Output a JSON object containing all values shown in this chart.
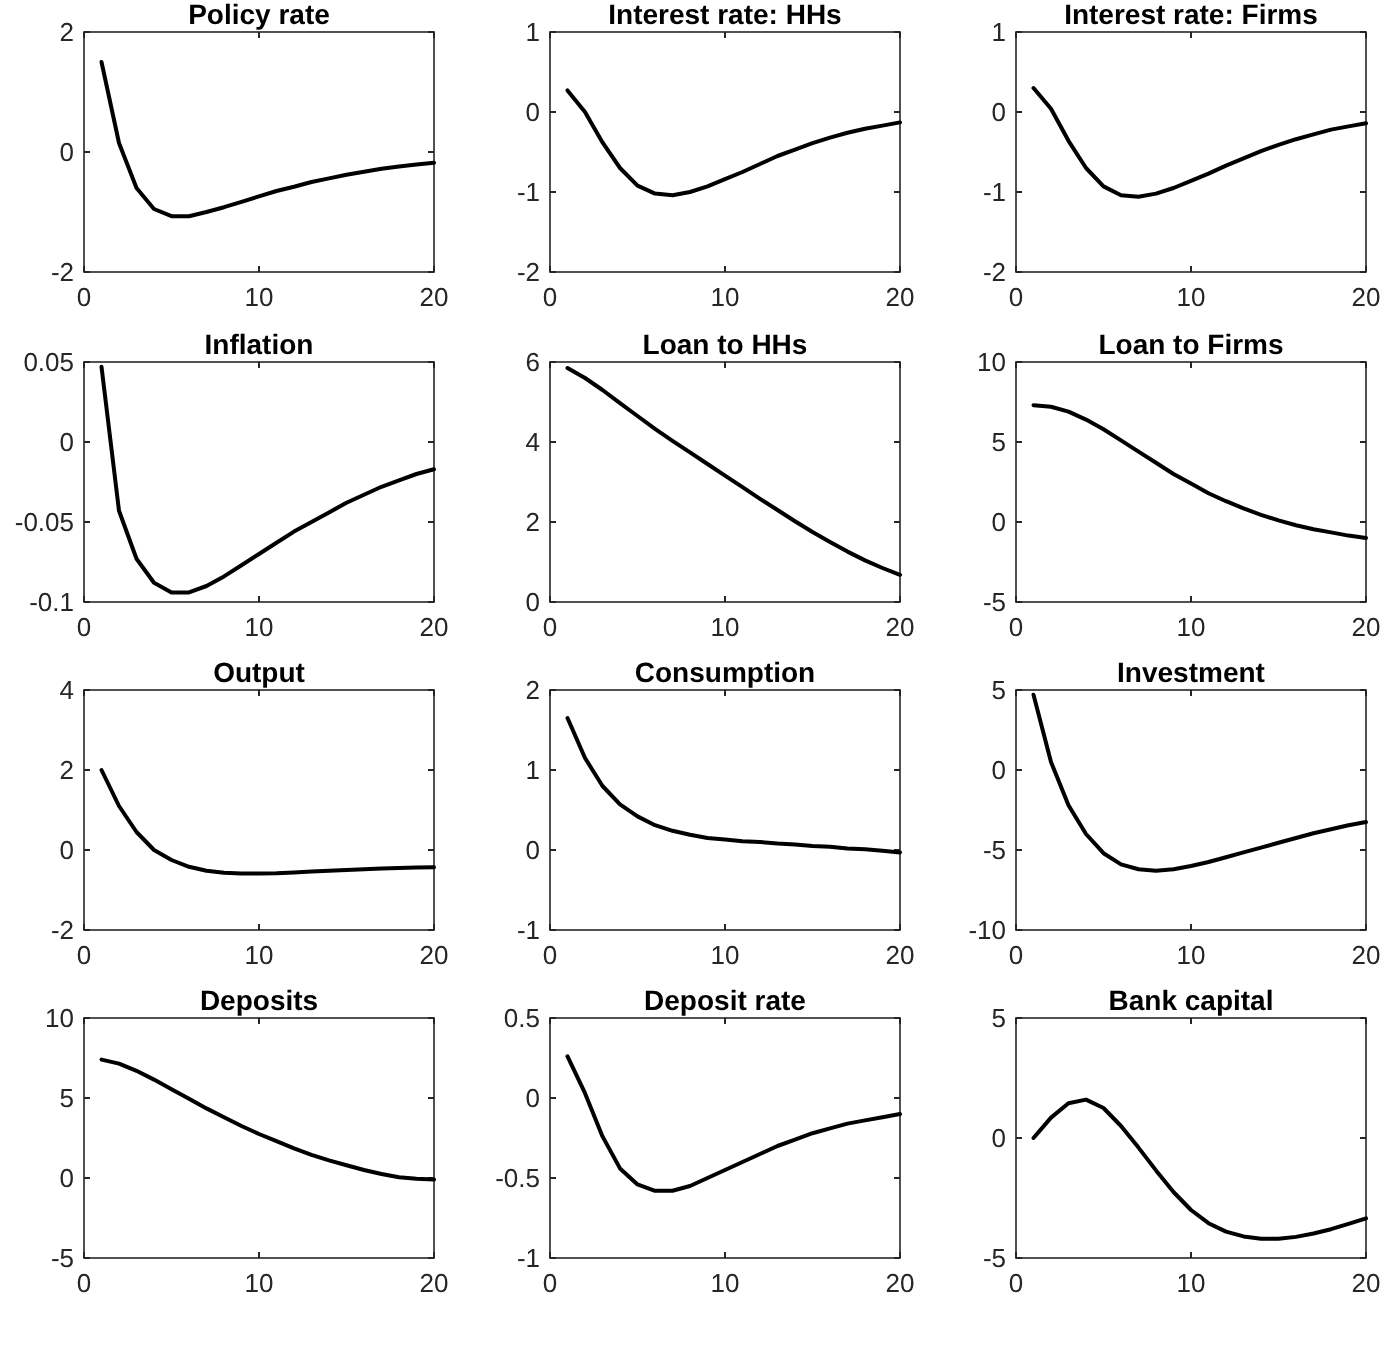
{
  "chart_data": [
    {
      "type": "line",
      "title": "Policy rate",
      "color": "#000000",
      "x": [
        1,
        2,
        3,
        4,
        5,
        6,
        7,
        8,
        9,
        10,
        11,
        12,
        13,
        14,
        15,
        16,
        17,
        18,
        19,
        20
      ],
      "values": [
        1.5,
        0.15,
        -0.6,
        -0.95,
        -1.07,
        -1.07,
        -1.0,
        -0.92,
        -0.83,
        -0.74,
        -0.65,
        -0.58,
        -0.5,
        -0.44,
        -0.38,
        -0.33,
        -0.28,
        -0.24,
        -0.21,
        -0.18
      ],
      "xlim": [
        0,
        20
      ],
      "xticks": [
        0,
        10,
        20
      ],
      "ylim": [
        -2,
        2
      ],
      "yticks": [
        -2,
        0,
        2
      ]
    },
    {
      "type": "line",
      "title": "Interest rate: HHs",
      "color": "#000000",
      "x": [
        1,
        2,
        3,
        4,
        5,
        6,
        7,
        8,
        9,
        10,
        11,
        12,
        13,
        14,
        15,
        16,
        17,
        18,
        19,
        20
      ],
      "values": [
        0.27,
        0.0,
        -0.38,
        -0.7,
        -0.92,
        -1.02,
        -1.04,
        -1.0,
        -0.93,
        -0.84,
        -0.75,
        -0.65,
        -0.55,
        -0.47,
        -0.39,
        -0.32,
        -0.26,
        -0.21,
        -0.17,
        -0.13
      ],
      "xlim": [
        0,
        20
      ],
      "xticks": [
        0,
        10,
        20
      ],
      "ylim": [
        -2,
        1
      ],
      "yticks": [
        -2,
        -1,
        0,
        1
      ]
    },
    {
      "type": "line",
      "title": "Interest rate: Firms",
      "color": "#000000",
      "x": [
        1,
        2,
        3,
        4,
        5,
        6,
        7,
        8,
        9,
        10,
        11,
        12,
        13,
        14,
        15,
        16,
        17,
        18,
        19,
        20
      ],
      "values": [
        0.3,
        0.04,
        -0.36,
        -0.7,
        -0.93,
        -1.04,
        -1.06,
        -1.02,
        -0.95,
        -0.86,
        -0.77,
        -0.67,
        -0.58,
        -0.49,
        -0.41,
        -0.34,
        -0.28,
        -0.22,
        -0.18,
        -0.14
      ],
      "xlim": [
        0,
        20
      ],
      "xticks": [
        0,
        10,
        20
      ],
      "ylim": [
        -2,
        1
      ],
      "yticks": [
        -2,
        -1,
        0,
        1
      ]
    },
    {
      "type": "line",
      "title": "Inflation",
      "color": "#000000",
      "x": [
        1,
        2,
        3,
        4,
        5,
        6,
        7,
        8,
        9,
        10,
        11,
        12,
        13,
        14,
        15,
        16,
        17,
        18,
        19,
        20
      ],
      "values": [
        0.047,
        -0.043,
        -0.073,
        -0.088,
        -0.094,
        -0.094,
        -0.09,
        -0.084,
        -0.077,
        -0.07,
        -0.063,
        -0.056,
        -0.05,
        -0.044,
        -0.038,
        -0.033,
        -0.028,
        -0.024,
        -0.02,
        -0.017
      ],
      "xlim": [
        0,
        20
      ],
      "xticks": [
        0,
        10,
        20
      ],
      "ylim": [
        -0.1,
        0.05
      ],
      "yticks": [
        -0.1,
        -0.05,
        0,
        0.05
      ]
    },
    {
      "type": "line",
      "title": "Loan to HHs",
      "color": "#000000",
      "x": [
        1,
        2,
        3,
        4,
        5,
        6,
        7,
        8,
        9,
        10,
        11,
        12,
        13,
        14,
        15,
        16,
        17,
        18,
        19,
        20
      ],
      "values": [
        5.85,
        5.6,
        5.3,
        4.97,
        4.65,
        4.33,
        4.03,
        3.74,
        3.45,
        3.16,
        2.87,
        2.58,
        2.3,
        2.02,
        1.75,
        1.5,
        1.26,
        1.04,
        0.85,
        0.68
      ],
      "xlim": [
        0,
        20
      ],
      "xticks": [
        0,
        10,
        20
      ],
      "ylim": [
        0,
        6
      ],
      "yticks": [
        0,
        2,
        4,
        6
      ]
    },
    {
      "type": "line",
      "title": "Loan to Firms",
      "color": "#000000",
      "x": [
        1,
        2,
        3,
        4,
        5,
        6,
        7,
        8,
        9,
        10,
        11,
        12,
        13,
        14,
        15,
        16,
        17,
        18,
        19,
        20
      ],
      "values": [
        7.3,
        7.2,
        6.9,
        6.4,
        5.8,
        5.1,
        4.4,
        3.7,
        3.0,
        2.4,
        1.8,
        1.3,
        0.85,
        0.45,
        0.1,
        -0.2,
        -0.45,
        -0.65,
        -0.85,
        -1.0
      ],
      "xlim": [
        0,
        20
      ],
      "xticks": [
        0,
        10,
        20
      ],
      "ylim": [
        -5,
        10
      ],
      "yticks": [
        -5,
        0,
        5,
        10
      ]
    },
    {
      "type": "line",
      "title": "Output",
      "color": "#000000",
      "x": [
        1,
        2,
        3,
        4,
        5,
        6,
        7,
        8,
        9,
        10,
        11,
        12,
        13,
        14,
        15,
        16,
        17,
        18,
        19,
        20
      ],
      "values": [
        2.0,
        1.1,
        0.45,
        0.0,
        -0.25,
        -0.42,
        -0.52,
        -0.57,
        -0.59,
        -0.59,
        -0.58,
        -0.56,
        -0.54,
        -0.52,
        -0.5,
        -0.48,
        -0.46,
        -0.45,
        -0.44,
        -0.43
      ],
      "xlim": [
        0,
        20
      ],
      "xticks": [
        0,
        10,
        20
      ],
      "ylim": [
        -2,
        4
      ],
      "yticks": [
        -2,
        0,
        2,
        4
      ]
    },
    {
      "type": "line",
      "title": "Consumption",
      "color": "#000000",
      "x": [
        1,
        2,
        3,
        4,
        5,
        6,
        7,
        8,
        9,
        10,
        11,
        12,
        13,
        14,
        15,
        16,
        17,
        18,
        19,
        20
      ],
      "values": [
        1.65,
        1.15,
        0.8,
        0.57,
        0.42,
        0.31,
        0.24,
        0.19,
        0.15,
        0.13,
        0.11,
        0.1,
        0.08,
        0.07,
        0.05,
        0.04,
        0.02,
        0.01,
        -0.01,
        -0.03
      ],
      "xlim": [
        0,
        20
      ],
      "xticks": [
        0,
        10,
        20
      ],
      "ylim": [
        -1,
        2
      ],
      "yticks": [
        -1,
        0,
        1,
        2
      ]
    },
    {
      "type": "line",
      "title": "Investment",
      "color": "#000000",
      "x": [
        1,
        2,
        3,
        4,
        5,
        6,
        7,
        8,
        9,
        10,
        11,
        12,
        13,
        14,
        15,
        16,
        17,
        18,
        19,
        20
      ],
      "values": [
        4.7,
        0.5,
        -2.2,
        -4.0,
        -5.2,
        -5.9,
        -6.2,
        -6.3,
        -6.2,
        -6.0,
        -5.75,
        -5.45,
        -5.15,
        -4.85,
        -4.55,
        -4.25,
        -3.95,
        -3.7,
        -3.45,
        -3.25
      ],
      "xlim": [
        0,
        20
      ],
      "xticks": [
        0,
        10,
        20
      ],
      "ylim": [
        -10,
        5
      ],
      "yticks": [
        -10,
        -5,
        0,
        5
      ]
    },
    {
      "type": "line",
      "title": "Deposits",
      "color": "#000000",
      "x": [
        1,
        2,
        3,
        4,
        5,
        6,
        7,
        8,
        9,
        10,
        11,
        12,
        13,
        14,
        15,
        16,
        17,
        18,
        19,
        20
      ],
      "values": [
        7.4,
        7.15,
        6.7,
        6.15,
        5.55,
        4.95,
        4.35,
        3.8,
        3.25,
        2.75,
        2.3,
        1.85,
        1.45,
        1.1,
        0.8,
        0.5,
        0.25,
        0.05,
        -0.05,
        -0.1
      ],
      "xlim": [
        0,
        20
      ],
      "xticks": [
        0,
        10,
        20
      ],
      "ylim": [
        -5,
        10
      ],
      "yticks": [
        -5,
        0,
        5,
        10
      ]
    },
    {
      "type": "line",
      "title": "Deposit rate",
      "color": "#000000",
      "x": [
        1,
        2,
        3,
        4,
        5,
        6,
        7,
        8,
        9,
        10,
        11,
        12,
        13,
        14,
        15,
        16,
        17,
        18,
        19,
        20
      ],
      "values": [
        0.26,
        0.03,
        -0.24,
        -0.44,
        -0.54,
        -0.58,
        -0.58,
        -0.55,
        -0.5,
        -0.45,
        -0.4,
        -0.35,
        -0.3,
        -0.26,
        -0.22,
        -0.19,
        -0.16,
        -0.14,
        -0.12,
        -0.1
      ],
      "xlim": [
        0,
        20
      ],
      "xticks": [
        0,
        10,
        20
      ],
      "ylim": [
        -1,
        0.5
      ],
      "yticks": [
        -1,
        -0.5,
        0,
        0.5
      ]
    },
    {
      "type": "line",
      "title": "Bank capital",
      "color": "#000000",
      "x": [
        1,
        2,
        3,
        4,
        5,
        6,
        7,
        8,
        9,
        10,
        11,
        12,
        13,
        14,
        15,
        16,
        17,
        18,
        19,
        20
      ],
      "values": [
        0,
        0.85,
        1.45,
        1.6,
        1.25,
        0.5,
        -0.4,
        -1.35,
        -2.25,
        -3.0,
        -3.55,
        -3.9,
        -4.1,
        -4.2,
        -4.2,
        -4.12,
        -3.98,
        -3.8,
        -3.58,
        -3.35
      ],
      "xlim": [
        0,
        20
      ],
      "xticks": [
        0,
        10,
        20
      ],
      "ylim": [
        -5,
        5
      ],
      "yticks": [
        -5,
        0,
        5
      ]
    }
  ]
}
